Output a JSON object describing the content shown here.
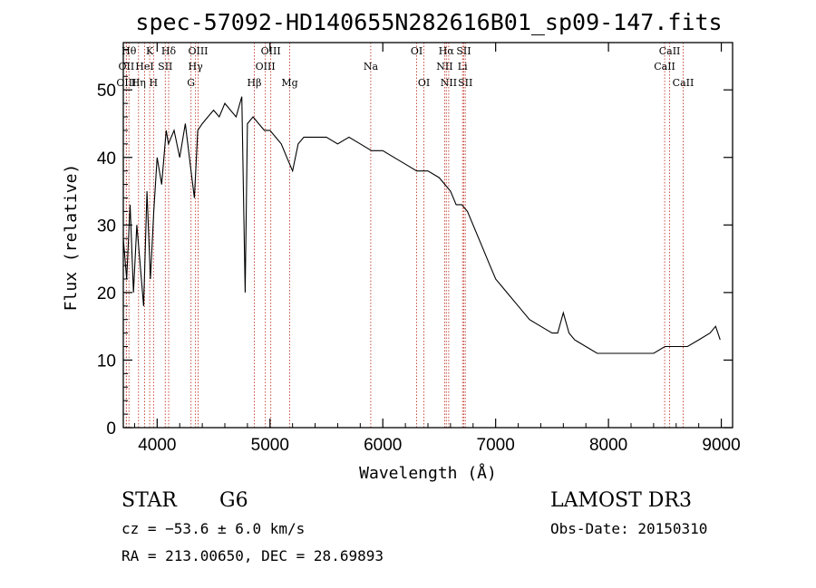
{
  "chart_data": {
    "type": "line",
    "title": "spec-57092-HD140655N282616B01_sp09-147.fits",
    "xlabel": "Wavelength (Å)",
    "ylabel": "Flux (relative)",
    "xlim": [
      3700,
      9100
    ],
    "ylim": [
      0,
      57
    ],
    "xticks": [
      4000,
      5000,
      6000,
      7000,
      8000,
      9000
    ],
    "yticks": [
      0,
      10,
      20,
      30,
      40,
      50
    ],
    "grid": false,
    "series": [
      {
        "x": [
          3700,
          3730,
          3760,
          3790,
          3820,
          3850,
          3880,
          3910,
          3940,
          3970,
          4000,
          4040,
          4080,
          4100,
          4150,
          4200,
          4250,
          4300,
          4330,
          4360,
          4400,
          4450,
          4500,
          4550,
          4600,
          4650,
          4700,
          4750,
          4780,
          4800,
          4850,
          4900,
          4950,
          5000,
          5050,
          5100,
          5150,
          5200,
          5250,
          5300,
          5400,
          5500,
          5600,
          5700,
          5800,
          5900,
          6000,
          6100,
          6200,
          6300,
          6400,
          6500,
          6550,
          6600,
          6650,
          6700,
          6750,
          6800,
          6850,
          6900,
          6950,
          7000,
          7050,
          7100,
          7200,
          7300,
          7400,
          7500,
          7550,
          7600,
          7650,
          7700,
          7800,
          7900,
          8000,
          8100,
          8200,
          8300,
          8400,
          8500,
          8550,
          8600,
          8700,
          8800,
          8900,
          8950,
          8990
        ],
        "values": [
          28,
          22,
          33,
          20,
          30,
          24,
          18,
          35,
          22,
          32,
          40,
          36,
          44,
          42,
          44,
          40,
          45,
          38,
          34,
          44,
          45,
          46,
          47,
          46,
          48,
          47,
          46,
          49,
          20,
          45,
          46,
          45,
          44,
          44,
          43,
          42,
          40,
          38,
          42,
          43,
          43,
          43,
          42,
          43,
          42,
          41,
          41,
          40,
          39,
          38,
          38,
          37,
          36,
          35,
          33,
          33,
          32,
          30,
          28,
          26,
          24,
          22,
          21,
          20,
          18,
          16,
          15,
          14,
          14,
          17,
          14,
          13,
          12,
          11,
          11,
          11,
          11,
          11,
          11,
          12,
          12,
          12,
          12,
          13,
          14,
          15,
          13
        ]
      }
    ],
    "line_markers": [
      {
        "w": 3750,
        "label": "Hθ",
        "row": 1
      },
      {
        "w": 3727,
        "label": "OII",
        "row": 2
      },
      {
        "w": 3727,
        "label": "OIII",
        "row": 3
      },
      {
        "w": 3835,
        "label": "Hη",
        "row": 3
      },
      {
        "w": 3889,
        "label": "HeI",
        "row": 2
      },
      {
        "w": 3934,
        "label": "K",
        "row": 1
      },
      {
        "w": 3968,
        "label": "H",
        "row": 3
      },
      {
        "w": 4072,
        "label": "SII",
        "row": 2
      },
      {
        "w": 4102,
        "label": "Hδ",
        "row": 1
      },
      {
        "w": 4300,
        "label": "G",
        "row": 3
      },
      {
        "w": 4340,
        "label": "Hγ",
        "row": 2
      },
      {
        "w": 4363,
        "label": "OIII",
        "row": 1
      },
      {
        "w": 4861,
        "label": "Hβ",
        "row": 3
      },
      {
        "w": 4959,
        "label": "OIII",
        "row": 2
      },
      {
        "w": 5007,
        "label": "OIII",
        "row": 1
      },
      {
        "w": 5175,
        "label": "Mg",
        "row": 3
      },
      {
        "w": 5893,
        "label": "Na",
        "row": 2
      },
      {
        "w": 6300,
        "label": "OI",
        "row": 1
      },
      {
        "w": 6364,
        "label": "OI",
        "row": 3
      },
      {
        "w": 6548,
        "label": "NII",
        "row": 2
      },
      {
        "w": 6563,
        "label": "Hα",
        "row": 1
      },
      {
        "w": 6584,
        "label": "NII",
        "row": 3
      },
      {
        "w": 6707,
        "label": "Li",
        "row": 2
      },
      {
        "w": 6717,
        "label": "SII",
        "row": 1
      },
      {
        "w": 6731,
        "label": "SII",
        "row": 3
      },
      {
        "w": 8498,
        "label": "CaII",
        "row": 2
      },
      {
        "w": 8542,
        "label": "CaII",
        "row": 1
      },
      {
        "w": 8662,
        "label": "CaII",
        "row": 3
      }
    ]
  },
  "info": {
    "obj_class": "STAR",
    "subclass": "G6",
    "survey": "LAMOST DR3",
    "cz": "cz = −53.6 ± 6.0 km/s",
    "obs_date": "Obs-Date: 20150310",
    "radec": "RA = 213.00650, DEC =  28.69893"
  }
}
